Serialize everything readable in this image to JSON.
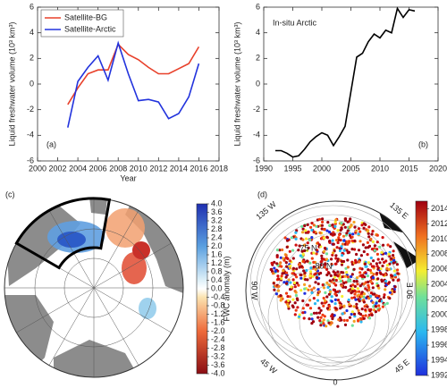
{
  "chart_data": [
    {
      "type": "line",
      "xlabel": "Year",
      "ylabel": "Liquid freshwater volume (10³ km³)",
      "panel_label": "(a)",
      "x": [
        2003,
        2004,
        2005,
        2006,
        2007,
        2008,
        2009,
        2010,
        2011,
        2012,
        2013,
        2014,
        2015,
        2016
      ],
      "series": [
        {
          "name": "Satellite-BG",
          "color": "#e8402a",
          "values": [
            -1.6,
            -0.3,
            0.8,
            1.1,
            1.1,
            3.1,
            2.3,
            1.9,
            1.3,
            0.8,
            0.8,
            1.2,
            1.6,
            2.9
          ]
        },
        {
          "name": "Satellite-Arctic",
          "color": "#2233dd",
          "values": [
            -3.4,
            0.2,
            1.3,
            2.2,
            0.3,
            3.2,
            0.8,
            -1.3,
            -1.2,
            -1.4,
            -2.7,
            -2.3,
            -1.0,
            1.6
          ]
        }
      ],
      "legend": "upper left",
      "xlim": [
        2000,
        2018
      ],
      "xticks": [
        2000,
        2002,
        2004,
        2006,
        2008,
        2010,
        2012,
        2014,
        2016,
        2018
      ],
      "ylim": [
        -6,
        6
      ],
      "yticks": [
        -6,
        -4,
        -2,
        0,
        2,
        4,
        6
      ]
    },
    {
      "type": "line",
      "ylabel": "Liquid freshwater volume (10³ km³)",
      "panel_label": "(b)",
      "annotation": "In-situ Arctic",
      "x": [
        1992,
        1993,
        1994,
        1995,
        1996,
        1997,
        1998,
        1999,
        2000,
        2001,
        2002,
        2003,
        2004,
        2005,
        2006,
        2007,
        2008,
        2009,
        2010,
        2011,
        2012,
        2013,
        2014,
        2015,
        2016
      ],
      "series": [
        {
          "name": "In-situ Arctic",
          "color": "#000000",
          "values": [
            -5.2,
            -5.2,
            -5.4,
            -5.7,
            -5.6,
            -5.1,
            -4.5,
            -4.1,
            -3.8,
            -4.0,
            -4.8,
            -4.1,
            -3.3,
            -0.6,
            2.1,
            2.4,
            3.3,
            3.9,
            3.6,
            4.2,
            4.0,
            5.9,
            5.2,
            5.8,
            5.7
          ]
        }
      ],
      "xlim": [
        1990,
        2020
      ],
      "xticks": [
        1990,
        1995,
        2000,
        2005,
        2010,
        2015,
        2020
      ],
      "ylim": [
        -6,
        6
      ],
      "yticks": [
        -6,
        -4,
        -2,
        0,
        2,
        4,
        6
      ]
    }
  ],
  "maps": [
    {
      "panel_label": "(c)",
      "colorbar": {
        "title": "FWC anomaly (m)",
        "lim": [
          -4,
          4
        ],
        "ticks": [
          {
            "value": 4,
            "label": "4.0"
          },
          {
            "value": 3.6,
            "label": "3.6"
          },
          {
            "value": 3.2,
            "label": "3.2"
          },
          {
            "value": 2.8,
            "label": "2.8"
          },
          {
            "value": 2.4,
            "label": "2.4"
          },
          {
            "value": 2,
            "label": "2.0"
          },
          {
            "value": 1.6,
            "label": "1.6"
          },
          {
            "value": 1.2,
            "label": "1.2"
          },
          {
            "value": 0.8,
            "label": "0.8"
          },
          {
            "value": 0.4,
            "label": "0.4"
          },
          {
            "value": 0,
            "label": "0.0"
          },
          {
            "value": -0.4,
            "label": "-0.4"
          },
          {
            "value": -0.8,
            "label": "-0.8"
          },
          {
            "value": -1.2,
            "label": "-1.2"
          },
          {
            "value": -1.6,
            "label": "-1.6"
          },
          {
            "value": -2,
            "label": "-2.0"
          },
          {
            "value": -2.4,
            "label": "-2.4"
          },
          {
            "value": -2.8,
            "label": "-2.8"
          },
          {
            "value": -3.2,
            "label": "-3.2"
          },
          {
            "value": -3.6,
            "label": "-3.6"
          },
          {
            "value": -4,
            "label": "-4.0"
          }
        ]
      }
    },
    {
      "panel_label": "(d)",
      "annotations": [
        "135 W",
        "135 E",
        "75 N",
        "80 N",
        "90 W",
        "90 E",
        "45 W",
        "45 E",
        "0"
      ],
      "colorbar": {
        "lim": [
          1992,
          2015
        ],
        "ticks": [
          1992,
          1994,
          1996,
          1998,
          2000,
          2002,
          2004,
          2006,
          2008,
          2010,
          2012,
          2014
        ]
      }
    }
  ]
}
